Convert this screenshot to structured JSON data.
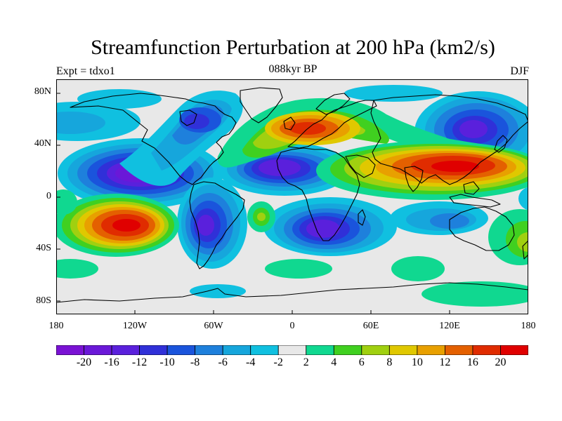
{
  "title": "Streamfunction Perturbation at 200 hPa (km2/s)",
  "center_string": "088kyr BP",
  "left_string": "Expt = tdxo1",
  "right_string": "DJF",
  "lat_labels": [
    "80N",
    "40N",
    "0",
    "40S",
    "80S"
  ],
  "lon_labels": [
    "180",
    "120W",
    "60W",
    "0",
    "60E",
    "120E",
    "180"
  ],
  "colorbar": {
    "labels": [
      "-20",
      "-16",
      "-12",
      "-10",
      "-8",
      "-6",
      "-4",
      "-2",
      "2",
      "4",
      "6",
      "8",
      "10",
      "12",
      "16",
      "20"
    ],
    "colors": [
      "#7a12d4",
      "#6a18d8",
      "#5a20dc",
      "#3030d8",
      "#1a54dc",
      "#1e80dc",
      "#16a6dc",
      "#10c0e0",
      "#e8e8e8",
      "#10d890",
      "#40d020",
      "#a0d010",
      "#e0c800",
      "#e8a000",
      "#e46000",
      "#e02c00",
      "#e00000"
    ]
  }
}
